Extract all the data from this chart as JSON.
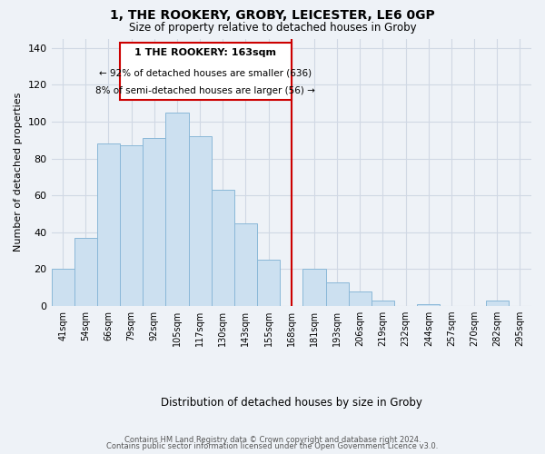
{
  "title": "1, THE ROOKERY, GROBY, LEICESTER, LE6 0GP",
  "subtitle": "Size of property relative to detached houses in Groby",
  "xlabel": "Distribution of detached houses by size in Groby",
  "ylabel": "Number of detached properties",
  "bar_labels": [
    "41sqm",
    "54sqm",
    "66sqm",
    "79sqm",
    "92sqm",
    "105sqm",
    "117sqm",
    "130sqm",
    "143sqm",
    "155sqm",
    "168sqm",
    "181sqm",
    "193sqm",
    "206sqm",
    "219sqm",
    "232sqm",
    "244sqm",
    "257sqm",
    "270sqm",
    "282sqm",
    "295sqm"
  ],
  "bar_values": [
    20,
    37,
    88,
    87,
    91,
    105,
    92,
    63,
    45,
    25,
    0,
    20,
    13,
    8,
    3,
    0,
    1,
    0,
    0,
    3,
    0
  ],
  "bar_color": "#cce0f0",
  "bar_edge_color": "#8ab8d8",
  "vline_x_index": 10,
  "vline_color": "#cc0000",
  "annotation_title": "1 THE ROOKERY: 163sqm",
  "annotation_line1": "← 92% of detached houses are smaller (636)",
  "annotation_line2": "8% of semi-detached houses are larger (56) →",
  "annotation_box_color": "#ffffff",
  "annotation_box_edge_color": "#cc0000",
  "ylim": [
    0,
    145
  ],
  "yticks": [
    0,
    20,
    40,
    60,
    80,
    100,
    120,
    140
  ],
  "footer_line1": "Contains HM Land Registry data © Crown copyright and database right 2024.",
  "footer_line2": "Contains public sector information licensed under the Open Government Licence v3.0.",
  "background_color": "#eef2f7",
  "grid_color": "#d0d8e4"
}
